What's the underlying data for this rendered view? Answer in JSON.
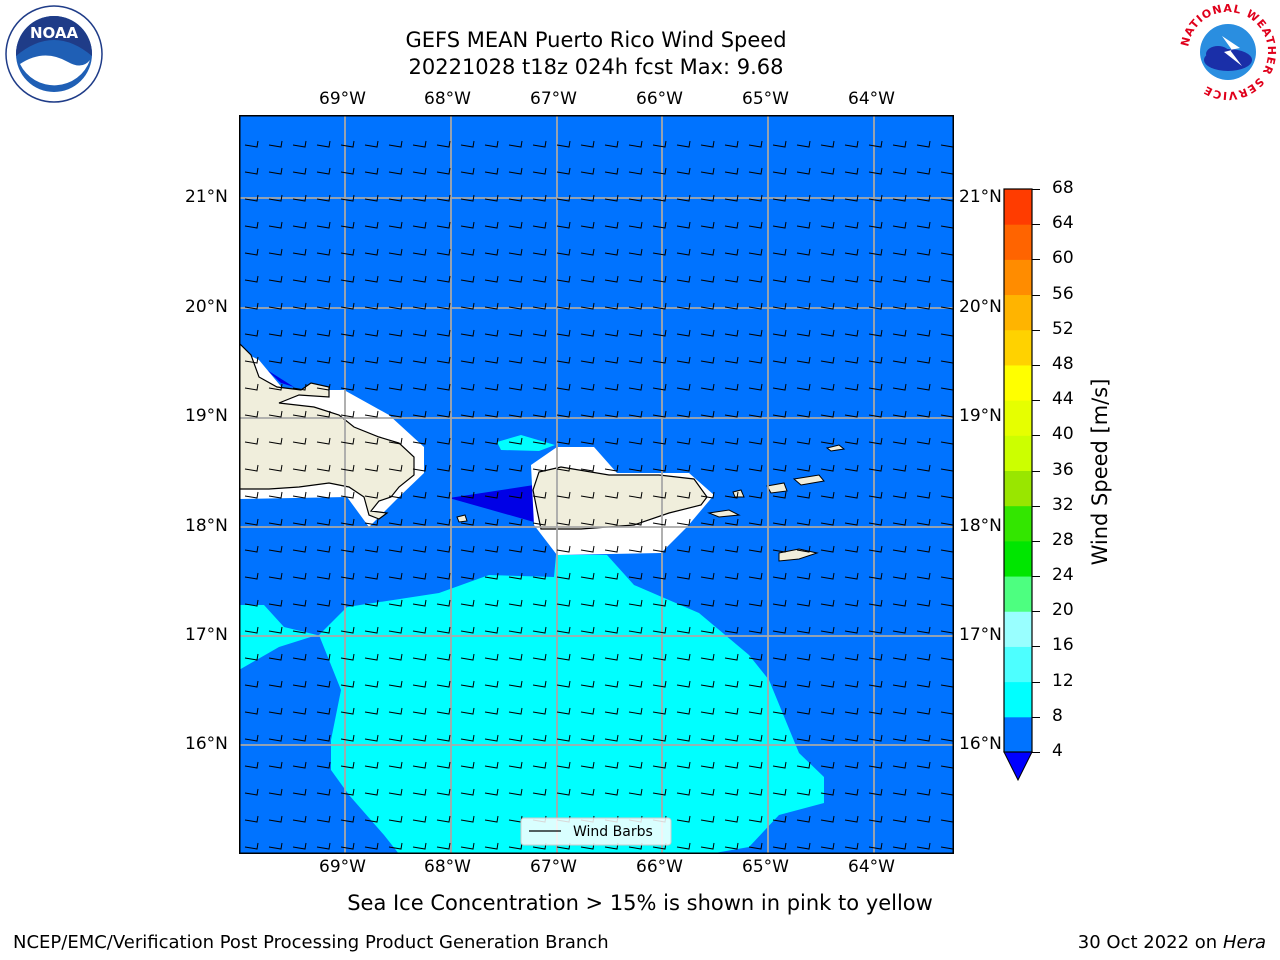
{
  "title_line1": "GEFS MEAN Puerto Rico Wind Speed",
  "title_line2": "20221028 t18z 024h fcst   Max: 9.68",
  "logos": {
    "noaa_text": "NOAA",
    "nws_ring_text": "NATIONAL WEATHER SERVICE"
  },
  "lon_ticks": [
    "69°W",
    "68°W",
    "67°W",
    "66°W",
    "65°W",
    "64°W"
  ],
  "lat_ticks": [
    "21°N",
    "20°N",
    "19°N",
    "18°N",
    "17°N",
    "16°N"
  ],
  "legend_label": "Wind Barbs",
  "colorbar": {
    "label": "Wind Speed [m/s]",
    "ticks": [
      "4",
      "8",
      "12",
      "16",
      "20",
      "24",
      "28",
      "32",
      "36",
      "40",
      "44",
      "48",
      "52",
      "56",
      "60",
      "64",
      "68"
    ],
    "colors": [
      "#0073ff",
      "#00ffff",
      "#4dffff",
      "#99ffff",
      "#4dff80",
      "#00e600",
      "#33e600",
      "#99e600",
      "#ccff00",
      "#e6ff00",
      "#ffff00",
      "#ffd200",
      "#ffb400",
      "#ff8c00",
      "#ff6400",
      "#ff3c00",
      "#ff0000"
    ],
    "underflow_color": "#0000ff"
  },
  "colors": {
    "ocean": "#0073ff",
    "cyan": "#00ffff",
    "dark_blue": "#0000e6",
    "land": "#f0eedc",
    "white": "#ffffff"
  },
  "sea_ice_note": "Sea Ice Concentration > 15% is shown in pink to yellow",
  "footer_left": "NCEP/EMC/Verification Post Processing Product Generation Branch",
  "footer_date": "30 Oct 2022 on ",
  "footer_host": "Hera"
}
